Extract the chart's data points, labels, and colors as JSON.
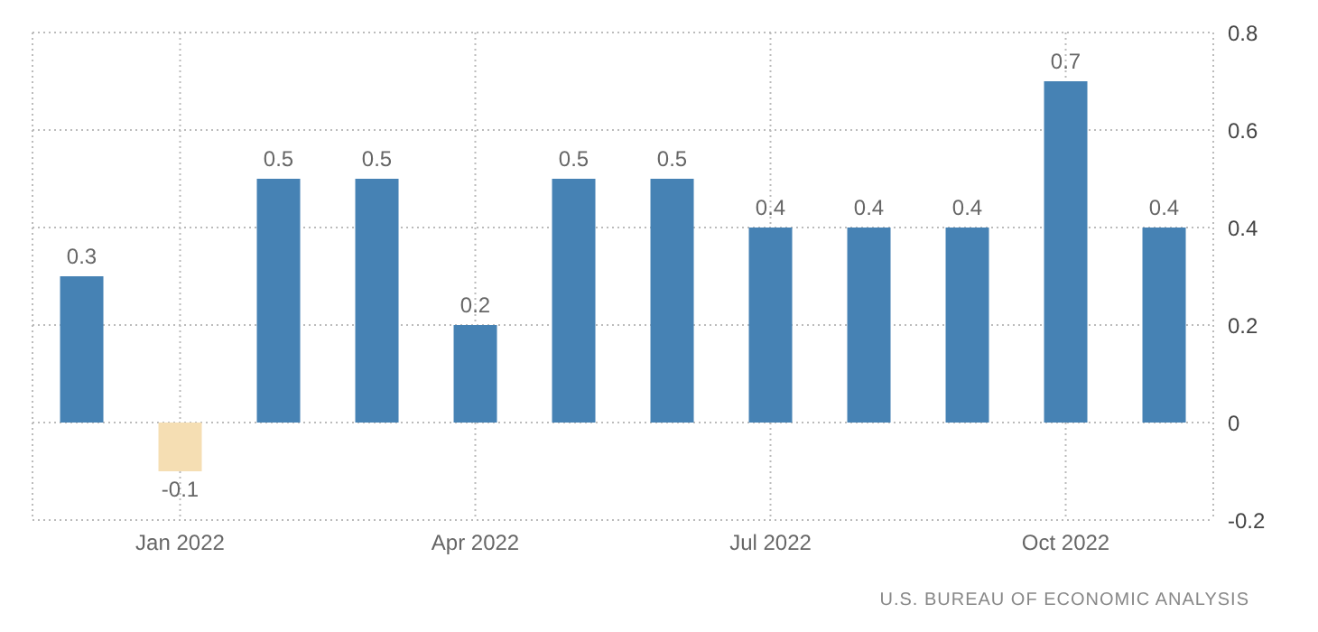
{
  "chart_data": {
    "type": "bar",
    "categories": [
      null,
      "Jan 2022",
      null,
      null,
      "Apr 2022",
      null,
      null,
      "Jul 2022",
      null,
      null,
      "Oct 2022",
      null
    ],
    "values": [
      0.3,
      -0.1,
      0.5,
      0.5,
      0.2,
      0.5,
      0.5,
      0.4,
      0.4,
      0.4,
      0.7,
      0.4
    ],
    "colors": [
      "#4682b4",
      "#f5deb3",
      "#4682b4",
      "#4682b4",
      "#4682b4",
      "#4682b4",
      "#4682b4",
      "#4682b4",
      "#4682b4",
      "#4682b4",
      "#4682b4",
      "#4682b4"
    ],
    "ylim": [
      -0.2,
      0.8
    ],
    "yticks": [
      -0.2,
      0,
      0.2,
      0.4,
      0.6,
      0.8
    ],
    "grid": true,
    "data_labels": true,
    "annotations": [
      "U.S. BUREAU OF ECONOMIC ANALYSIS"
    ]
  }
}
